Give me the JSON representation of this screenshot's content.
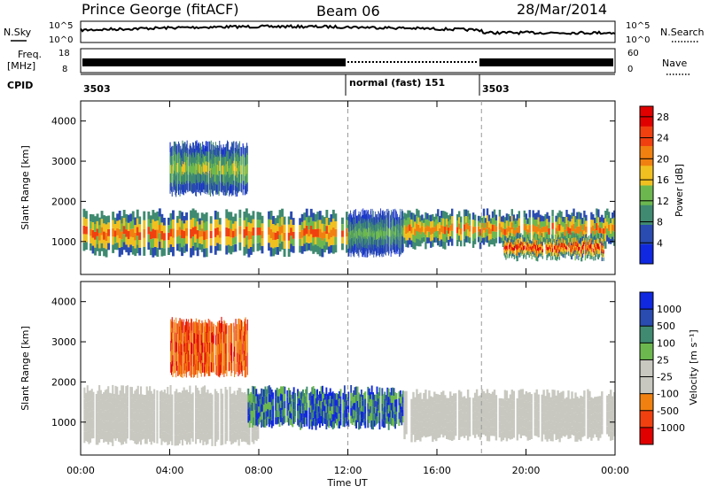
{
  "header": {
    "station": "Prince George (fitACF)",
    "beam": "Beam 06",
    "date": "28/Mar/2014"
  },
  "top_strips": {
    "nsky_label": "N.Sky",
    "nsky_ticks": [
      "10^5",
      "10^0"
    ],
    "nsearch_label": "N.Search",
    "nsearch_ticks": [
      "10^5",
      "10^0"
    ],
    "freq_label": "Freq.",
    "freq_unit": "[MHz]",
    "freq_ticks": [
      "18",
      "8"
    ],
    "nave_label": "Nave",
    "nave_ticks": [
      "60",
      "0"
    ],
    "cpid_label": "CPID",
    "cpid_segments": [
      {
        "label": "3503",
        "start": "00:00",
        "end": "12:00"
      },
      {
        "label": "normal (fast) 151",
        "start": "12:00",
        "end": "18:00"
      },
      {
        "label": "3503",
        "start": "18:00",
        "end": "24:00"
      }
    ]
  },
  "colors": {
    "power_scale": [
      "#1028e0",
      "#2a4bb0",
      "#3f8a70",
      "#6cb84f",
      "#f0c020",
      "#f08010",
      "#f04010",
      "#e00000"
    ],
    "velocity_scale": [
      "#1028e0",
      "#2a4bb0",
      "#3f8a70",
      "#6cb84f",
      "#c8c8c0",
      "#c8c8c0",
      "#f08010",
      "#f04010",
      "#e00000"
    ],
    "ground_scatter": "#c8c8c0"
  },
  "chart_data": [
    {
      "type": "heatmap",
      "name": "power",
      "ylabel": "Slant Range [km]",
      "xlabel": "",
      "x_ticks": [
        "00:00",
        "04:00",
        "08:00",
        "12:00",
        "16:00",
        "20:00",
        "00:00"
      ],
      "y_ticks": [
        1000,
        2000,
        3000,
        4000
      ],
      "ylim": [
        180,
        4500
      ],
      "xlim_hours": [
        0,
        24
      ],
      "colorbar_label": "Power [dB]",
      "colorbar_ticks": [
        4,
        8,
        12,
        16,
        20,
        24,
        28
      ],
      "colorbar_range": [
        0,
        30
      ],
      "regions": [
        {
          "start_h": 0.0,
          "end_h": 12.0,
          "lower_km": 700,
          "upper_km": 1700,
          "peak_db": 24
        },
        {
          "start_h": 4.0,
          "end_h": 7.5,
          "lower_km": 2200,
          "upper_km": 3400,
          "peak_db": 14
        },
        {
          "start_h": 12.0,
          "end_h": 14.5,
          "lower_km": 700,
          "upper_km": 1700,
          "peak_db": 12
        },
        {
          "start_h": 14.5,
          "end_h": 24.0,
          "lower_km": 900,
          "upper_km": 1700,
          "peak_db": 22
        },
        {
          "start_h": 19.0,
          "end_h": 23.5,
          "lower_km": 600,
          "upper_km": 1100,
          "peak_db": 28
        }
      ]
    },
    {
      "type": "heatmap",
      "name": "velocity",
      "ylabel": "Slant Range [km]",
      "xlabel": "Time UT",
      "x_ticks": [
        "00:00",
        "04:00",
        "08:00",
        "12:00",
        "16:00",
        "20:00",
        "00:00"
      ],
      "y_ticks": [
        1000,
        2000,
        3000,
        4000
      ],
      "ylim": [
        180,
        4500
      ],
      "xlim_hours": [
        0,
        24
      ],
      "colorbar_label": "Velocity [m s⁻¹]",
      "colorbar_ticks": [
        "1000",
        "500",
        "100",
        "25",
        "-25",
        "-100",
        "-500",
        "-1000"
      ],
      "regions": [
        {
          "start_h": 0.0,
          "end_h": 8.0,
          "lower_km": 500,
          "upper_km": 1800,
          "kind": "ground scatter"
        },
        {
          "start_h": 4.0,
          "end_h": 7.5,
          "lower_km": 2200,
          "upper_km": 3500,
          "velocity": -500
        },
        {
          "start_h": 7.5,
          "end_h": 14.5,
          "lower_km": 900,
          "upper_km": 1800,
          "velocity": 500
        },
        {
          "start_h": 14.5,
          "end_h": 24.0,
          "lower_km": 600,
          "upper_km": 1700,
          "kind": "ground scatter"
        }
      ]
    }
  ]
}
